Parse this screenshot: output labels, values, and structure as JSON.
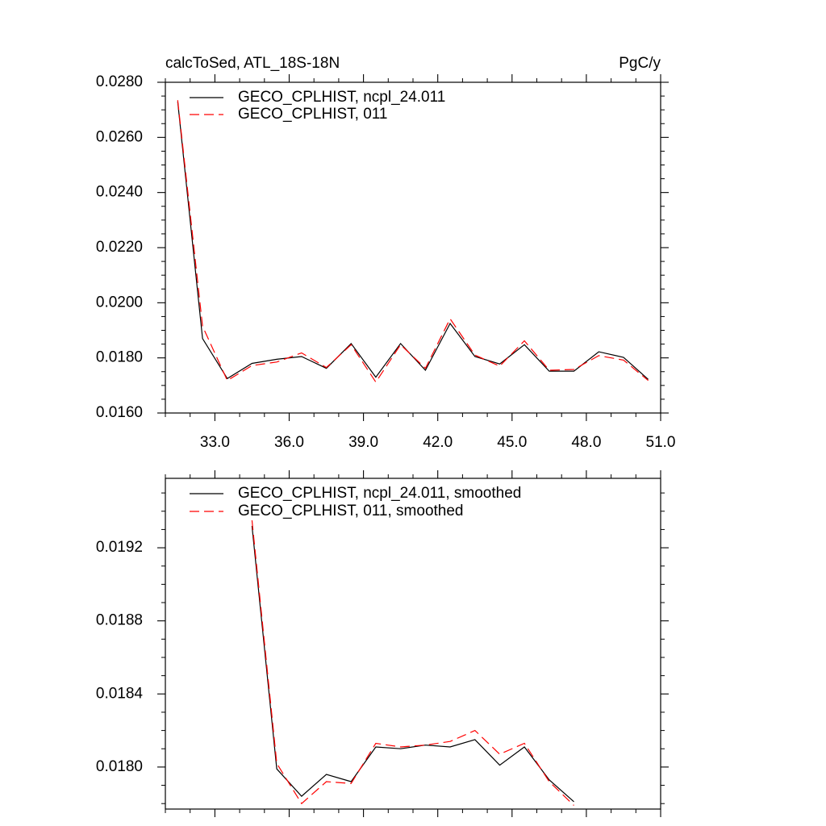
{
  "chart_data": [
    {
      "type": "line",
      "title": "calcToSed, ATL_18S-18N",
      "units": "PgC/y",
      "xlim": [
        31.0,
        51.0
      ],
      "ylim": [
        0.016,
        0.028
      ],
      "x_ticks": [
        33.0,
        36.0,
        39.0,
        42.0,
        45.0,
        48.0,
        51.0
      ],
      "x_tick_labels": [
        "33.0",
        "36.0",
        "39.0",
        "42.0",
        "45.0",
        "48.0",
        "51.0"
      ],
      "y_ticks": [
        0.016,
        0.018,
        0.02,
        0.022,
        0.024,
        0.026,
        0.028
      ],
      "y_tick_labels": [
        "0.0160",
        "0.0180",
        "0.0200",
        "0.0220",
        "0.0240",
        "0.0260",
        "0.0280"
      ],
      "legend_position": "top-left",
      "x": [
        31.5,
        32.5,
        33.5,
        34.5,
        35.5,
        36.5,
        37.5,
        38.5,
        39.5,
        40.5,
        41.5,
        42.5,
        43.5,
        44.5,
        45.5,
        46.5,
        47.5,
        48.5,
        49.5,
        50.5
      ],
      "series": [
        {
          "name": "GECO_CPLHIST, ncpl_24.011",
          "color": "#000000",
          "dash": "solid",
          "values": [
            0.0273,
            0.0187,
            0.01725,
            0.0178,
            0.01795,
            0.01805,
            0.01762,
            0.01852,
            0.0173,
            0.01852,
            0.01755,
            0.01925,
            0.01805,
            0.01778,
            0.01848,
            0.01752,
            0.01752,
            0.01822,
            0.01802,
            0.01722
          ]
        },
        {
          "name": "GECO_CPLHIST, 011",
          "color": "#ff0000",
          "dash": "dashed",
          "values": [
            0.02735,
            0.01915,
            0.01718,
            0.01772,
            0.01785,
            0.01818,
            0.01765,
            0.01848,
            0.01712,
            0.01848,
            0.01762,
            0.01942,
            0.0181,
            0.0177,
            0.01862,
            0.01755,
            0.01758,
            0.01808,
            0.01792,
            0.01718
          ]
        }
      ]
    },
    {
      "type": "line",
      "xlim": [
        31.0,
        51.0
      ],
      "ylim": [
        0.01777,
        0.01958
      ],
      "x_ticks": [
        33.0,
        36.0,
        39.0,
        42.0,
        45.0,
        48.0,
        51.0
      ],
      "y_ticks": [
        0.018,
        0.0184,
        0.0188,
        0.0192
      ],
      "y_tick_labels": [
        "0.0180",
        "0.0184",
        "0.0188",
        "0.0192"
      ],
      "legend_position": "top-left",
      "x": [
        34.5,
        35.5,
        36.5,
        37.5,
        38.5,
        39.5,
        40.5,
        41.5,
        42.5,
        43.5,
        44.5,
        45.5,
        46.5,
        47.5
      ],
      "series": [
        {
          "name": "GECO_CPLHIST, ncpl_24.011, smoothed",
          "color": "#000000",
          "dash": "solid",
          "values": [
            0.01932,
            0.01799,
            0.01784,
            0.01796,
            0.01792,
            0.01811,
            0.0181,
            0.01812,
            0.01811,
            0.01815,
            0.01801,
            0.01811,
            0.01793,
            0.01781
          ]
        },
        {
          "name": "GECO_CPLHIST, 011, smoothed",
          "color": "#ff0000",
          "dash": "dashed",
          "values": [
            0.01935,
            0.01802,
            0.0178,
            0.01792,
            0.01791,
            0.01813,
            0.01811,
            0.01812,
            0.01814,
            0.0182,
            0.01807,
            0.01813,
            0.01792,
            0.01779
          ]
        }
      ]
    }
  ]
}
